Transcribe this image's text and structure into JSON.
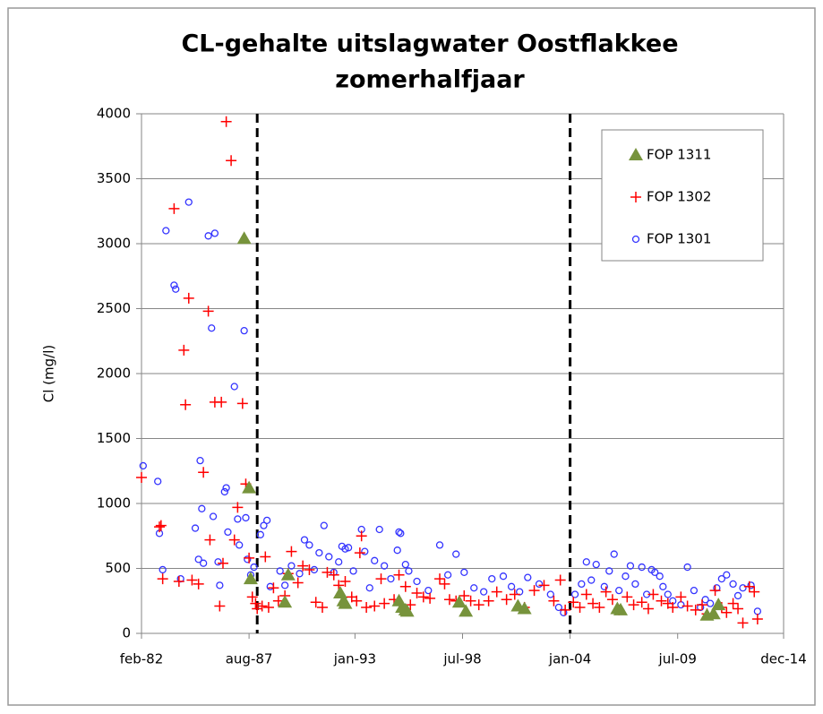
{
  "chart_data": {
    "type": "scatter",
    "title": [
      "CL-gehalte uitslagwater  Oostflakkee",
      "zomerhalfjaar"
    ],
    "y_label": "Cl  (mg/l)",
    "xlim": [
      "1982-02",
      "2014-12"
    ],
    "xticks": [
      {
        "value": "1982-02",
        "label": "feb-82"
      },
      {
        "value": "1987-08",
        "label": "aug-87"
      },
      {
        "value": "1993-01",
        "label": "jan-93"
      },
      {
        "value": "1998-07",
        "label": "jul-98"
      },
      {
        "value": "2004-01",
        "label": "jan-04"
      },
      {
        "value": "2009-07",
        "label": "jul-09"
      },
      {
        "value": "2014-12",
        "label": "dec-14"
      }
    ],
    "ylim": [
      0,
      4000
    ],
    "yticks": [
      0,
      500,
      1000,
      1500,
      2000,
      2500,
      3000,
      3500,
      4000
    ],
    "grid": true,
    "vlines": [
      "1988-01",
      "2004-01"
    ],
    "legend": "top-right",
    "series": [
      {
        "name": "FOP 1311",
        "color": "#77933c",
        "marker": "triangle",
        "x": [
          "1987-05",
          "1987-08",
          "1987-09",
          "1989-06",
          "1989-08",
          "1992-04",
          "1992-06",
          "1992-07",
          "1995-04",
          "1995-06",
          "1995-08",
          "1995-09",
          "1998-05",
          "1998-09",
          "2001-05",
          "2001-09",
          "2006-06",
          "2006-08",
          "2011-01",
          "2011-05",
          "2011-08"
        ],
        "values": [
          3040,
          1120,
          420,
          240,
          450,
          310,
          250,
          230,
          250,
          200,
          180,
          170,
          240,
          170,
          210,
          190,
          190,
          180,
          140,
          150,
          220
        ]
      },
      {
        "name": "FOP 1302",
        "color": "#ff0000",
        "marker": "plus",
        "x": [
          "1982-02",
          "1983-01",
          "1983-02",
          "1983-03",
          "1983-10",
          "1984-01",
          "1984-04",
          "1984-05",
          "1984-07",
          "1984-09",
          "1985-01",
          "1985-04",
          "1985-07",
          "1985-08",
          "1985-11",
          "1986-02",
          "1986-03",
          "1986-04",
          "1986-06",
          "1986-09",
          "1986-11",
          "1987-01",
          "1987-04",
          "1987-06",
          "1987-08",
          "1987-10",
          "1987-12",
          "1988-01",
          "1988-04",
          "1988-06",
          "1988-08",
          "1988-11",
          "1989-02",
          "1989-06",
          "1989-08",
          "1989-10",
          "1990-02",
          "1990-05",
          "1990-09",
          "1991-01",
          "1991-05",
          "1991-08",
          "1991-12",
          "1992-03",
          "1992-07",
          "1992-11",
          "1993-02",
          "1993-04",
          "1993-05",
          "1993-08",
          "1994-01",
          "1994-05",
          "1994-07",
          "1995-01",
          "1995-04",
          "1995-08",
          "1995-11",
          "1996-03",
          "1996-07",
          "1996-11",
          "1997-05",
          "1997-08",
          "1997-11",
          "1998-03",
          "1998-08",
          "1998-12",
          "1999-05",
          "1999-11",
          "2000-04",
          "2000-10",
          "2001-03",
          "2001-09",
          "2002-03",
          "2002-09",
          "2003-03",
          "2003-07",
          "2003-10",
          "2004-03",
          "2004-07",
          "2004-11",
          "2005-03",
          "2005-07",
          "2005-11",
          "2006-03",
          "2006-07",
          "2006-12",
          "2007-04",
          "2007-09",
          "2008-01",
          "2008-04",
          "2008-09",
          "2009-01",
          "2009-04",
          "2009-09",
          "2010-01",
          "2010-06",
          "2010-10",
          "2011-01",
          "2011-06",
          "2011-10",
          "2012-01",
          "2012-05",
          "2012-08",
          "2012-11",
          "2013-03",
          "2013-06",
          "2013-08"
        ],
        "values": [
          1200,
          820,
          830,
          420,
          3270,
          400,
          2180,
          1760,
          2580,
          410,
          380,
          1240,
          2480,
          720,
          1780,
          210,
          1780,
          540,
          3940,
          3640,
          720,
          970,
          1770,
          1150,
          580,
          280,
          230,
          190,
          210,
          590,
          200,
          350,
          250,
          290,
          460,
          630,
          390,
          520,
          490,
          240,
          200,
          470,
          450,
          370,
          400,
          280,
          250,
          620,
          750,
          200,
          210,
          420,
          230,
          260,
          450,
          360,
          220,
          310,
          280,
          270,
          420,
          380,
          260,
          250,
          290,
          250,
          220,
          250,
          320,
          260,
          300,
          200,
          330,
          370,
          250,
          410,
          180,
          240,
          200,
          300,
          230,
          200,
          320,
          260,
          180,
          280,
          220,
          240,
          190,
          300,
          250,
          230,
          200,
          280,
          210,
          180,
          220,
          150,
          330,
          200,
          160,
          230,
          190,
          80,
          360,
          320,
          110
        ]
      },
      {
        "name": "FOP 1301",
        "color": "#3333ff",
        "marker": "circle",
        "x": [
          "1982-03",
          "1982-12",
          "1983-01",
          "1983-03",
          "1983-05",
          "1983-10",
          "1983-11",
          "1984-02",
          "1984-07",
          "1984-11",
          "1985-01",
          "1985-02",
          "1985-03",
          "1985-04",
          "1985-07",
          "1985-09",
          "1985-10",
          "1985-11",
          "1986-01",
          "1986-02",
          "1986-05",
          "1986-06",
          "1986-07",
          "1986-11",
          "1987-01",
          "1987-02",
          "1987-05",
          "1987-06",
          "1987-07",
          "1987-09",
          "1987-11",
          "1988-03",
          "1988-05",
          "1988-07",
          "1988-09",
          "1989-03",
          "1989-06",
          "1989-10",
          "1990-03",
          "1990-06",
          "1990-09",
          "1990-12",
          "1991-03",
          "1991-06",
          "1991-09",
          "1991-12",
          "1992-03",
          "1992-05",
          "1992-07",
          "1992-09",
          "1992-12",
          "1993-05",
          "1993-07",
          "1993-10",
          "1994-01",
          "1994-04",
          "1994-07",
          "1994-11",
          "1995-03",
          "1995-04",
          "1995-05",
          "1995-08",
          "1995-10",
          "1996-03",
          "1996-10",
          "1997-05",
          "1997-10",
          "1998-03",
          "1998-08",
          "1999-02",
          "1999-08",
          "2000-01",
          "2000-08",
          "2001-01",
          "2001-06",
          "2001-11",
          "2002-06",
          "2003-01",
          "2003-06",
          "2003-09",
          "2004-04",
          "2004-08",
          "2004-11",
          "2005-02",
          "2005-05",
          "2005-10",
          "2006-01",
          "2006-04",
          "2006-07",
          "2006-11",
          "2007-02",
          "2007-05",
          "2007-09",
          "2007-12",
          "2008-03",
          "2008-05",
          "2008-08",
          "2008-10",
          "2009-01",
          "2009-04",
          "2009-09",
          "2010-01",
          "2010-05",
          "2010-09",
          "2010-12",
          "2011-03",
          "2011-07",
          "2011-10",
          "2012-01",
          "2012-05",
          "2012-08",
          "2012-11",
          "2013-04",
          "2013-08"
        ],
        "values": [
          1290,
          1170,
          770,
          490,
          3100,
          2680,
          2650,
          420,
          3320,
          810,
          570,
          1330,
          960,
          540,
          3060,
          2350,
          900,
          3080,
          550,
          370,
          1090,
          1120,
          780,
          1900,
          880,
          680,
          2330,
          890,
          570,
          450,
          510,
          760,
          830,
          870,
          360,
          480,
          370,
          520,
          460,
          720,
          680,
          490,
          620,
          830,
          590,
          470,
          550,
          670,
          650,
          660,
          480,
          800,
          630,
          350,
          560,
          800,
          520,
          420,
          640,
          780,
          770,
          530,
          480,
          400,
          330,
          680,
          450,
          610,
          470,
          350,
          320,
          420,
          440,
          360,
          320,
          430,
          380,
          300,
          200,
          160,
          300,
          380,
          550,
          410,
          530,
          360,
          480,
          610,
          330,
          440,
          520,
          380,
          510,
          300,
          490,
          470,
          440,
          360,
          300,
          250,
          220,
          510,
          330,
          200,
          260,
          230,
          350,
          420,
          450,
          380,
          290,
          350,
          370,
          170
        ]
      }
    ]
  }
}
